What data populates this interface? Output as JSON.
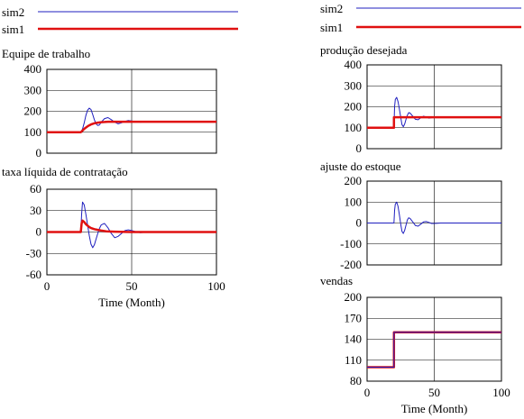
{
  "legend": {
    "left": [
      {
        "name": "sim2",
        "color": "#1f1fbf",
        "width": 1
      },
      {
        "name": "sim1",
        "color": "#e01010",
        "width": 2.5
      }
    ],
    "right": [
      {
        "name": "sim2",
        "color": "#1f1fbf",
        "width": 1
      },
      {
        "name": "sim1",
        "color": "#e01010",
        "width": 2.5
      }
    ]
  },
  "colors": {
    "sim2": "#1f1fbf",
    "sim1": "#e01010",
    "frame": "#000000",
    "grid": "#000000"
  },
  "chart_data": [
    {
      "id": "equipe",
      "type": "line",
      "title": "Equipe de trabalho",
      "ylim": [
        0,
        400
      ],
      "yticks": [
        "400",
        "300",
        "200",
        "100",
        "0"
      ],
      "xlim": [
        0,
        100
      ],
      "xticks": [],
      "xlabel": "",
      "grid": true,
      "series": [
        {
          "name": "sim2",
          "x": [
            0,
            20,
            21,
            22,
            23,
            24,
            25,
            26,
            27,
            28,
            29,
            30,
            31,
            32,
            34,
            36,
            38,
            40,
            42,
            44,
            46,
            48,
            50,
            55,
            60,
            70,
            80,
            90,
            100
          ],
          "y": [
            100,
            100,
            115,
            145,
            180,
            205,
            215,
            208,
            185,
            160,
            140,
            132,
            135,
            148,
            165,
            170,
            160,
            148,
            140,
            145,
            152,
            156,
            154,
            148,
            150,
            150,
            150,
            150,
            150
          ]
        },
        {
          "name": "sim1",
          "x": [
            0,
            20,
            21,
            22,
            23,
            24,
            25,
            26,
            27,
            28,
            30,
            32,
            34,
            36,
            40,
            45,
            50,
            60,
            70,
            80,
            90,
            100
          ],
          "y": [
            100,
            100,
            108,
            116,
            122,
            128,
            133,
            137,
            140,
            143,
            146,
            148,
            149,
            150,
            150,
            150,
            150,
            150,
            150,
            150,
            150,
            150
          ]
        }
      ]
    },
    {
      "id": "taxa",
      "type": "line",
      "title": "taxa líquida de contratação",
      "ylim": [
        -60,
        60
      ],
      "yticks": [
        "60",
        "30",
        "0",
        "-30",
        "-60"
      ],
      "xlim": [
        0,
        100
      ],
      "xticks": [
        "0",
        "50",
        "100"
      ],
      "xlabel": "Time (Month)",
      "grid": true,
      "series": [
        {
          "name": "sim2",
          "x": [
            0,
            20,
            20.5,
            21,
            22,
            23,
            24,
            25,
            26,
            27,
            28,
            29,
            30,
            31,
            32,
            34,
            36,
            38,
            40,
            42,
            44,
            46,
            48,
            50,
            55,
            60,
            70,
            80,
            90,
            100
          ],
          "y": [
            0,
            0,
            25,
            42,
            38,
            25,
            10,
            -5,
            -17,
            -22,
            -18,
            -10,
            -2,
            5,
            10,
            12,
            6,
            -2,
            -8,
            -6,
            -2,
            2,
            3,
            2,
            -1,
            0,
            0,
            0,
            0,
            0
          ]
        },
        {
          "name": "sim1",
          "x": [
            0,
            20,
            20.5,
            21,
            22,
            23,
            24,
            25,
            26,
            28,
            30,
            32,
            35,
            40,
            50,
            60,
            70,
            80,
            90,
            100
          ],
          "y": [
            0,
            0,
            12,
            16,
            14,
            11,
            9,
            7,
            5.5,
            4,
            3,
            2,
            1,
            0.5,
            0,
            0,
            0,
            0,
            0,
            0
          ]
        }
      ]
    },
    {
      "id": "producao",
      "type": "line",
      "title": "produção desejada",
      "ylim": [
        0,
        400
      ],
      "yticks": [
        "400",
        "300",
        "200",
        "100",
        "0"
      ],
      "xlim": [
        0,
        100
      ],
      "xticks": [],
      "xlabel": "",
      "grid": true,
      "series": [
        {
          "name": "sim2",
          "x": [
            0,
            20,
            20.5,
            21,
            22,
            23,
            24,
            25,
            26,
            27,
            28,
            29,
            30,
            31,
            32,
            34,
            36,
            38,
            40,
            42,
            44,
            46,
            48,
            50,
            55,
            60,
            70,
            80,
            90,
            100
          ],
          "y": [
            100,
            100,
            200,
            235,
            245,
            225,
            190,
            150,
            115,
            105,
            118,
            140,
            160,
            172,
            170,
            155,
            140,
            138,
            148,
            155,
            152,
            146,
            148,
            151,
            150,
            150,
            150,
            150,
            150,
            150
          ]
        },
        {
          "name": "sim1",
          "x": [
            0,
            20,
            20,
            100
          ],
          "y": [
            100,
            100,
            150,
            150
          ]
        }
      ]
    },
    {
      "id": "ajuste",
      "type": "line",
      "title": "ajuste do estoque",
      "ylim": [
        -200,
        200
      ],
      "yticks": [
        "200",
        "100",
        "0",
        "-100",
        "-200"
      ],
      "xlim": [
        0,
        100
      ],
      "xticks": [],
      "xlabel": "",
      "grid": true,
      "series": [
        {
          "name": "sim2",
          "x": [
            0,
            20,
            20.5,
            21,
            22,
            23,
            24,
            25,
            26,
            27,
            28,
            29,
            30,
            31,
            32,
            34,
            36,
            38,
            40,
            42,
            44,
            46,
            48,
            50,
            55,
            60,
            70,
            80,
            90,
            100
          ],
          "y": [
            0,
            0,
            60,
            90,
            100,
            80,
            40,
            -5,
            -40,
            -50,
            -35,
            -10,
            15,
            25,
            22,
            5,
            -12,
            -15,
            -5,
            5,
            7,
            3,
            -2,
            -2,
            0,
            0,
            0,
            0,
            0,
            0
          ]
        },
        {
          "name": "sim1",
          "x": [],
          "y": []
        }
      ]
    },
    {
      "id": "vendas",
      "type": "line",
      "title": "vendas",
      "ylim": [
        80,
        200
      ],
      "yticks": [
        "200",
        "170",
        "140",
        "110",
        "80"
      ],
      "xlim": [
        0,
        100
      ],
      "xticks": [
        "0",
        "50",
        "100"
      ],
      "xlabel": "Time (Month)",
      "grid": true,
      "series": [
        {
          "name": "sim1",
          "x": [
            0,
            20,
            20,
            100
          ],
          "y": [
            100,
            100,
            150,
            150
          ]
        },
        {
          "name": "sim2",
          "x": [
            0,
            20,
            20,
            100
          ],
          "y": [
            100,
            100,
            150,
            150
          ]
        }
      ]
    }
  ]
}
